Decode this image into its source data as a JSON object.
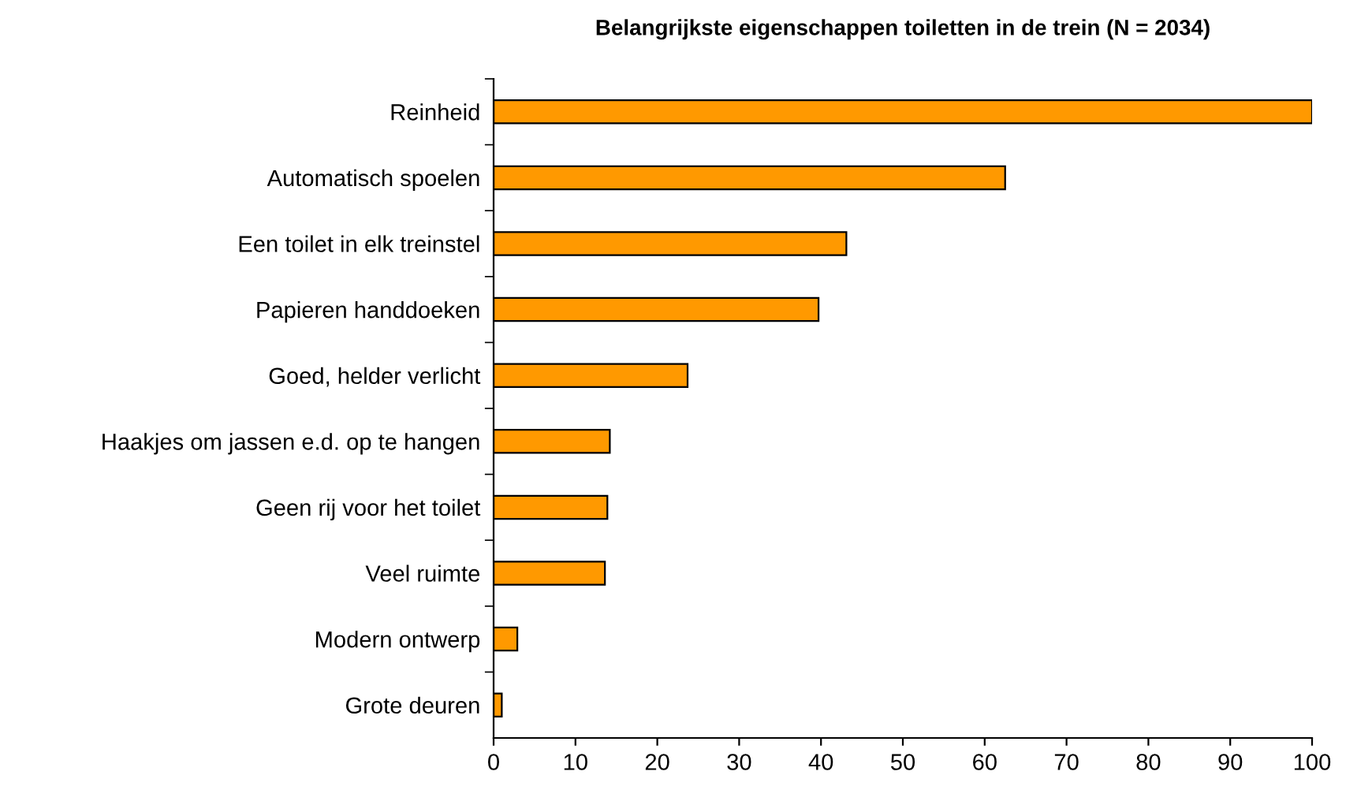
{
  "chart_data": {
    "type": "bar",
    "orientation": "horizontal",
    "title": "Belangrijkste eigenschappen toiletten in de trein (N = 2034)",
    "categories": [
      "Reinheid",
      "Automatisch spoelen",
      "Een toilet in elk treinstel",
      "Papieren handdoeken",
      "Goed, helder verlicht",
      "Haakjes om jassen e.d. op te hangen",
      "Geen rij voor het toilet",
      "Veel ruimte",
      "Modern ontwerp",
      "Grote deuren"
    ],
    "values": [
      100,
      62.5,
      43.1,
      39.7,
      23.7,
      14.2,
      13.9,
      13.6,
      2.9,
      1.0
    ],
    "color": "#ff9900",
    "xlim": [
      0,
      100
    ],
    "xticks": [
      0,
      10,
      20,
      30,
      40,
      50,
      60,
      70,
      80,
      90,
      100
    ],
    "grid": false,
    "legend": false
  }
}
